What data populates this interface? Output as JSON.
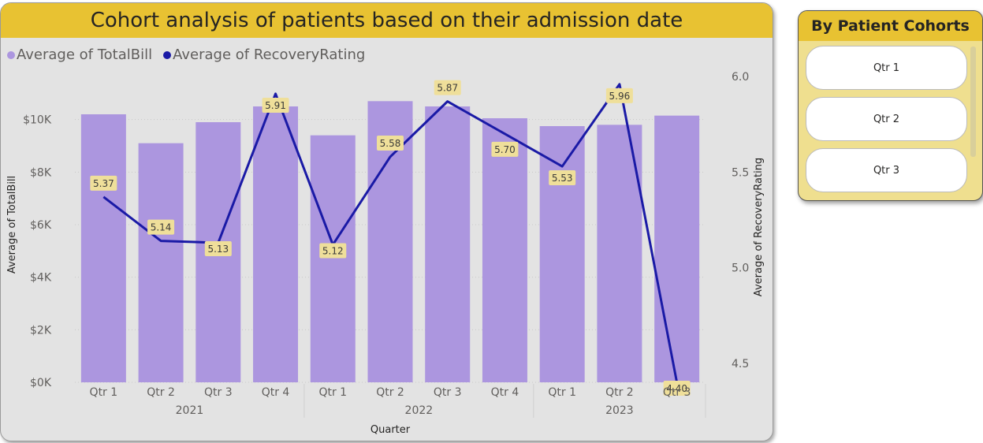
{
  "slicer": {
    "title": "By Patient Cohorts",
    "items": [
      {
        "label": "Qtr 1"
      },
      {
        "label": "Qtr 2"
      },
      {
        "label": "Qtr 3"
      }
    ]
  },
  "colors": {
    "bar": "#ac96df",
    "line": "#1a1aa6",
    "title_bg": "#e8c232",
    "label_bg": "#efdf9a"
  },
  "chart_data": {
    "type": "bar",
    "title": "Cohort analysis of patients based on their admission date",
    "legend": [
      "Average of TotalBill",
      "Average of RecoveryRating"
    ],
    "legend_position": "top-left",
    "xlabel": "Quarter",
    "ylabel": "Average of TotalBill",
    "y2label": "Average of RecoveryRating",
    "categories": [
      "Qtr 1",
      "Qtr 2",
      "Qtr 3",
      "Qtr 4",
      "Qtr 1",
      "Qtr 2",
      "Qtr 3",
      "Qtr 4",
      "Qtr 1",
      "Qtr 2",
      "Qtr 3"
    ],
    "years": [
      {
        "label": "2021",
        "start": 0,
        "end": 3
      },
      {
        "label": "2022",
        "start": 4,
        "end": 7
      },
      {
        "label": "2023",
        "start": 8,
        "end": 10
      }
    ],
    "ylim": [
      0,
      12000
    ],
    "yticks": [
      {
        "v": 0,
        "label": "$0K"
      },
      {
        "v": 2000,
        "label": "$2K"
      },
      {
        "v": 4000,
        "label": "$4K"
      },
      {
        "v": 6000,
        "label": "$6K"
      },
      {
        "v": 8000,
        "label": "$8K"
      },
      {
        "v": 10000,
        "label": "$10K"
      }
    ],
    "y2lim": [
      4.4,
      6.05
    ],
    "y2ticks": [
      {
        "v": 4.5,
        "label": "4.5"
      },
      {
        "v": 5.0,
        "label": "5.0"
      },
      {
        "v": 5.5,
        "label": "5.5"
      },
      {
        "v": 6.0,
        "label": "6.0"
      }
    ],
    "grid": true,
    "series": [
      {
        "name": "Average of TotalBill",
        "type": "bar",
        "values": [
          10200,
          9100,
          9900,
          10500,
          9400,
          10700,
          10500,
          10050,
          9750,
          9800,
          10150
        ]
      },
      {
        "name": "Average of RecoveryRating",
        "type": "line",
        "values": [
          5.37,
          5.14,
          5.13,
          5.91,
          5.12,
          5.58,
          5.87,
          5.7,
          5.53,
          5.96,
          4.4
        ],
        "labels": [
          "5.37",
          "5.14",
          "5.13",
          "5.91",
          "5.12",
          "5.58",
          "5.87",
          "5.70",
          "5.53",
          "5.96",
          "4.40"
        ]
      }
    ]
  }
}
